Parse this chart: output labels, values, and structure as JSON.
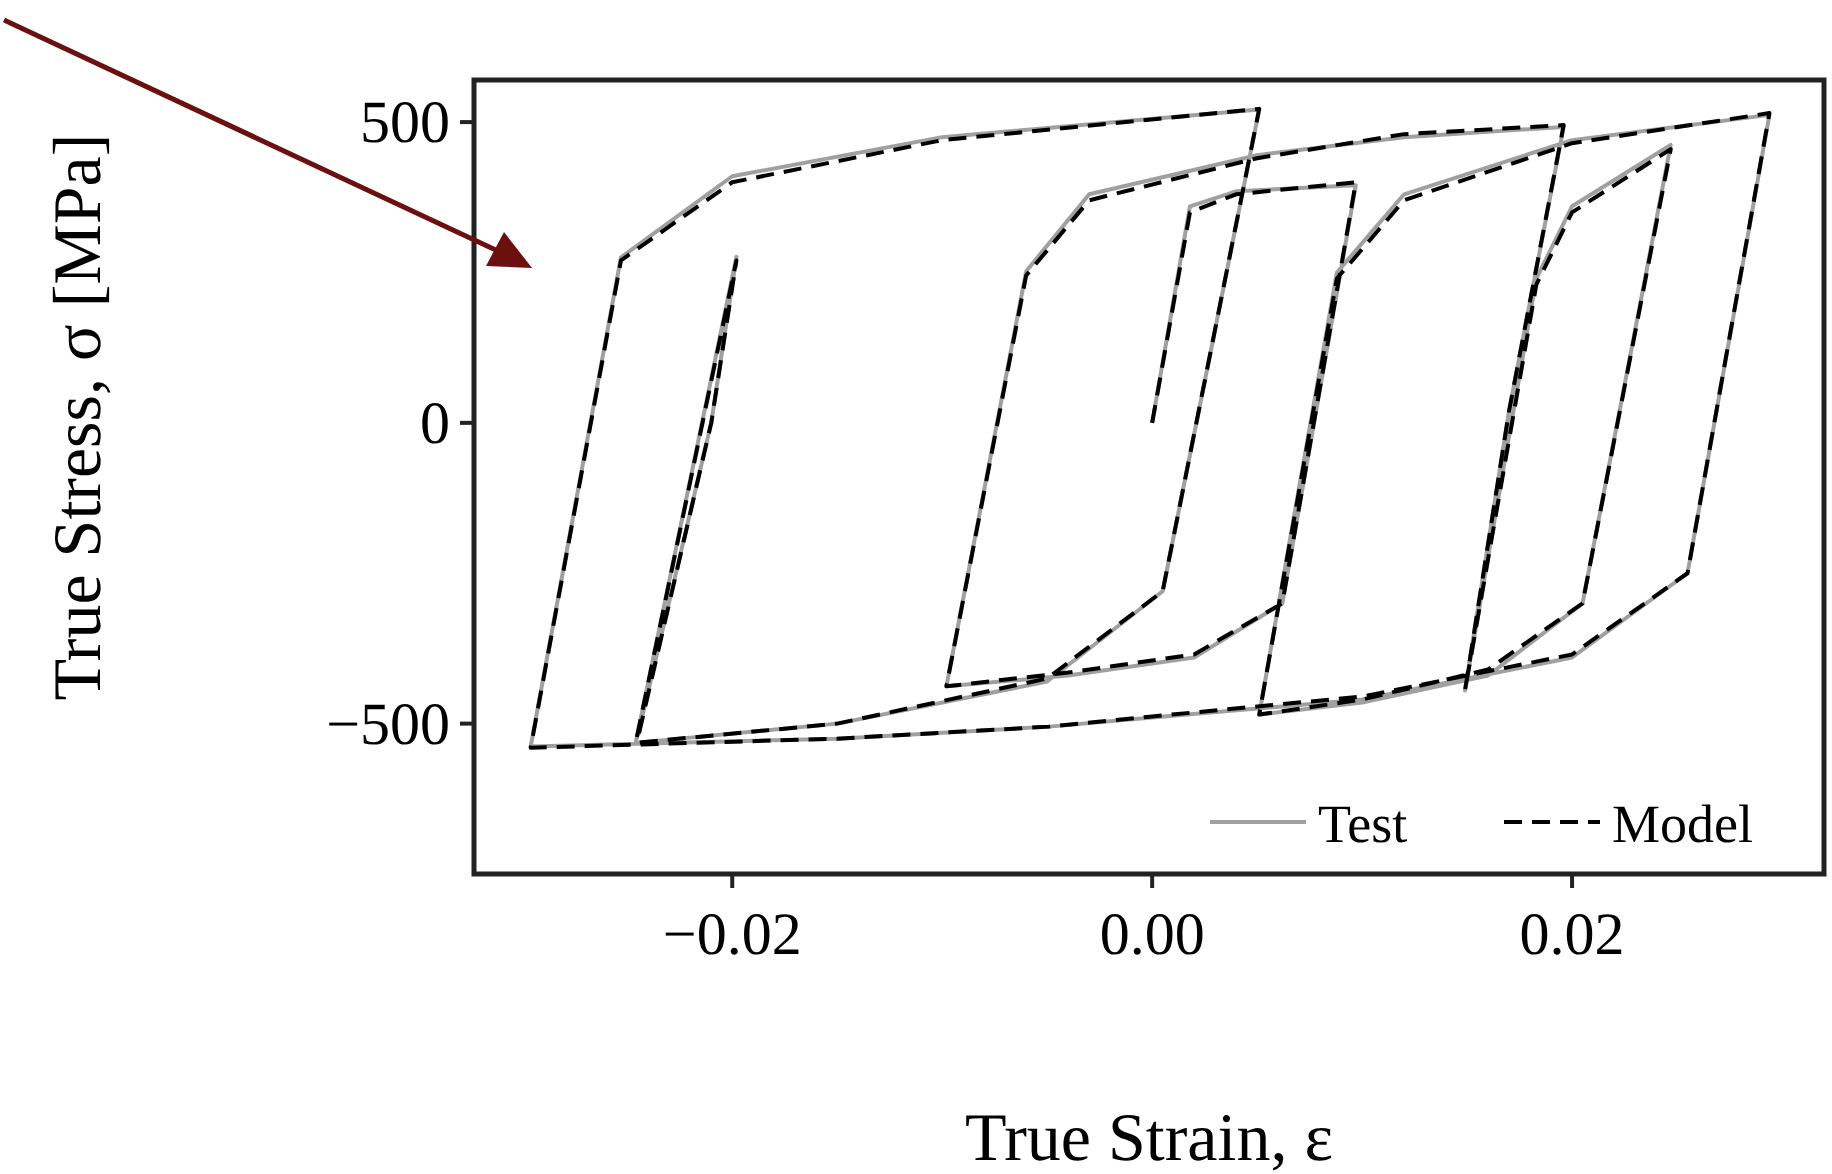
{
  "chart_data": {
    "type": "line",
    "xlabel": "True Strain, ε",
    "ylabel": "True Stress, σ [MPa]",
    "xlim": [
      -0.0323,
      0.032
    ],
    "ylim": [
      -750,
      570
    ],
    "xticks": [
      {
        "value": -0.02,
        "label": "−0.02"
      },
      {
        "value": 0,
        "label": "0.00"
      },
      {
        "value": 0.02,
        "label": "0.02"
      }
    ],
    "yticks": [
      {
        "value": -500,
        "label": "−500"
      },
      0,
      500
    ],
    "grid": false,
    "legend": "bottom right",
    "series": [
      {
        "name": "Test",
        "color": "#a0a0a0",
        "line_style": "solid",
        "x": [
          0,
          0.0018,
          0.004,
          0.0097,
          0.0062,
          0.002,
          -0.004,
          -0.0098,
          -0.006,
          -0.003,
          0.005,
          0.012,
          0.0196,
          0.017,
          0.0149,
          0.0183,
          0.02,
          0.0247,
          0.0205,
          0.016,
          0.01,
          0.0051,
          0.0088,
          0.012,
          0.02,
          0.0294,
          0.0255,
          0.02,
          0.01,
          0,
          -0.0049,
          -0.015,
          -0.0296,
          -0.0253,
          -0.02,
          -0.01,
          0.0051,
          0.0005,
          -0.005,
          -0.015,
          -0.0246,
          -0.0198,
          -0.021,
          -0.0245
        ],
        "values": [
          0,
          360,
          385,
          395,
          -300,
          -390,
          -420,
          -438,
          252,
          380,
          445,
          475,
          492,
          20,
          -445,
          240,
          360,
          462,
          -300,
          -420,
          -465,
          -485,
          250,
          380,
          470,
          512,
          -250,
          -390,
          -460,
          -490,
          -505,
          -525,
          -538,
          275,
          410,
          475,
          521,
          -280,
          -430,
          -500,
          -532,
          276,
          0,
          -520
        ]
      },
      {
        "name": "Model",
        "color": "#000000",
        "line_style": "dashed",
        "x": [
          0,
          0.0018,
          0.004,
          0.0097,
          0.0062,
          0.002,
          -0.004,
          -0.0098,
          -0.006,
          -0.003,
          0.005,
          0.012,
          0.0196,
          0.017,
          0.0149,
          0.0183,
          0.02,
          0.0247,
          0.0205,
          0.016,
          0.01,
          0.0051,
          0.0088,
          0.012,
          0.02,
          0.0294,
          0.0255,
          0.02,
          0.01,
          0,
          -0.0049,
          -0.015,
          -0.0296,
          -0.0253,
          -0.02,
          -0.01,
          0.0051,
          0.0005,
          -0.005,
          -0.015,
          -0.0246,
          -0.0198,
          -0.021,
          -0.0245
        ],
        "values": [
          0,
          350,
          380,
          400,
          -300,
          -385,
          -415,
          -438,
          245,
          370,
          440,
          480,
          495,
          20,
          -445,
          230,
          350,
          455,
          -300,
          -410,
          -460,
          -485,
          240,
          370,
          465,
          515,
          -250,
          -385,
          -455,
          -488,
          -505,
          -525,
          -540,
          270,
          400,
          470,
          522,
          -280,
          -425,
          -500,
          -532,
          270,
          0,
          -525
        ]
      }
    ]
  }
}
